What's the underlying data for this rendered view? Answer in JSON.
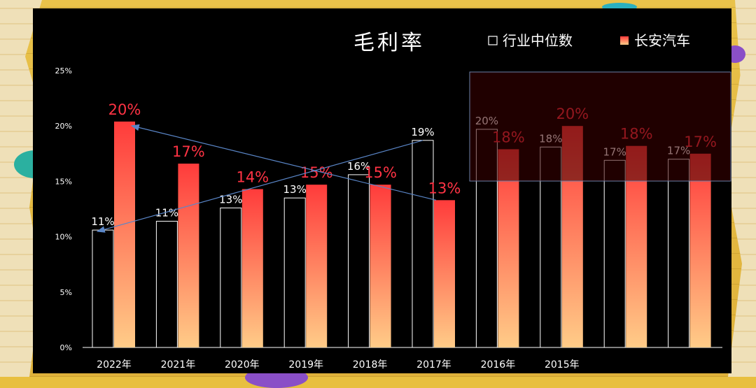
{
  "chart_data": {
    "type": "bar",
    "title": "毛利率",
    "categories": [
      "2022年",
      "2021年",
      "2020年",
      "2019年",
      "2018年",
      "2017年",
      "2016年",
      "2015年",
      "",
      ""
    ],
    "ylim": [
      0,
      25
    ],
    "yticks": [
      "0%",
      "5%",
      "10%",
      "15%",
      "20%",
      "25%"
    ],
    "series": [
      {
        "name": "行业中位数",
        "values": [
          10.6,
          11.4,
          12.6,
          13.5,
          15.6,
          18.7,
          19.7,
          18.1,
          16.9,
          17.0
        ],
        "labels": [
          "11%",
          "11%",
          "13%",
          "13%",
          "16%",
          "19%",
          "20%",
          "18%",
          "17%",
          "17%"
        ]
      },
      {
        "name": "长安汽车",
        "values": [
          20.4,
          16.6,
          14.3,
          14.7,
          14.7,
          13.3,
          17.9,
          20.0,
          18.2,
          17.5
        ],
        "labels": [
          "20%",
          "17%",
          "14%",
          "15%",
          "15%",
          "13%",
          "18%",
          "20%",
          "18%",
          "17%"
        ]
      }
    ],
    "colors": {
      "industry_stroke": "#ffffff",
      "changan_top": "#ff3b3b",
      "changan_bottom": "#ffcc88",
      "changan_label": "#ff3344",
      "arrow": "#5a86c8",
      "overlay": "#3a0000"
    }
  }
}
